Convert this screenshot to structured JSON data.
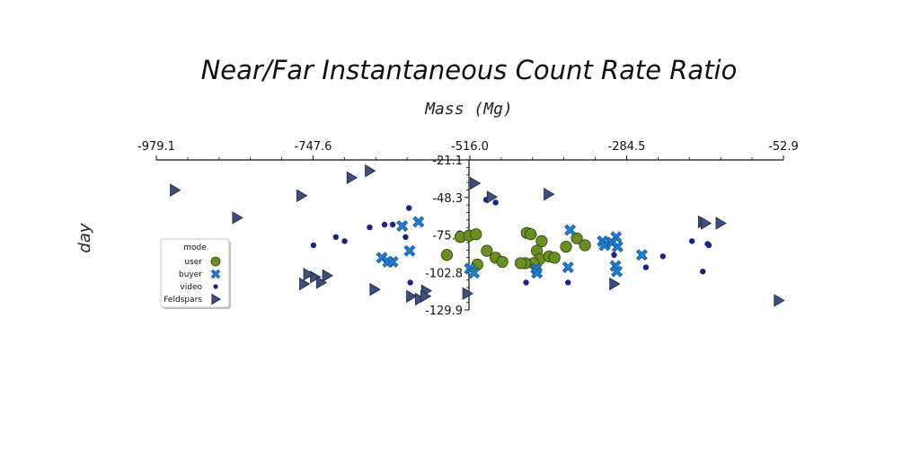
{
  "chart_data": {
    "type": "scatter",
    "title": "Near/Far Instantaneous Count Rate Ratio",
    "xlabel": "Mass (Mg)",
    "ylabel": "day",
    "xlim": [
      -979.1,
      -52.9
    ],
    "ylim": [
      -129.9,
      -21.1
    ],
    "x_ticks": [
      "-979.1",
      "-747.6",
      "-516.0",
      "-284.5",
      "-52.9"
    ],
    "y_ticks": [
      "-21.1",
      "-48.3",
      "-75.6",
      "-102.8",
      "-129.9"
    ],
    "legend": {
      "title": "mode",
      "placement": "left"
    },
    "series": [
      {
        "name": "user",
        "marker": "circle",
        "color": "#6b8e23",
        "points": [
          [
            -530,
            -77
          ],
          [
            -517,
            -76
          ],
          [
            -507,
            -75
          ],
          [
            -550,
            -90
          ],
          [
            -491,
            -87
          ],
          [
            -478,
            -92
          ],
          [
            -468,
            -95
          ],
          [
            -505,
            -97
          ],
          [
            -432,
            -74
          ],
          [
            -426,
            -75
          ],
          [
            -410,
            -80
          ],
          [
            -417,
            -87
          ],
          [
            -413,
            -93
          ],
          [
            -399,
            -91
          ],
          [
            -391,
            -92
          ],
          [
            -422,
            -96
          ],
          [
            -434,
            -96
          ],
          [
            -441,
            -96
          ],
          [
            -374,
            -84
          ],
          [
            -358,
            -78
          ],
          [
            -346,
            -83
          ]
        ]
      },
      {
        "name": "buyer",
        "marker": "x",
        "color": "#1e7fd0",
        "points": [
          [
            -616,
            -69
          ],
          [
            -592,
            -66
          ],
          [
            -605,
            -87
          ],
          [
            -646,
            -92
          ],
          [
            -637,
            -95
          ],
          [
            -630,
            -95
          ],
          [
            -516,
            -100
          ],
          [
            -510,
            -103
          ],
          [
            -418,
            -100
          ],
          [
            -417,
            -103
          ],
          [
            -368,
            -72
          ],
          [
            -371,
            -99
          ],
          [
            -320,
            -80
          ],
          [
            -317,
            -83
          ],
          [
            -301,
            -98
          ],
          [
            -299,
            -102
          ],
          [
            -300,
            -77
          ],
          [
            -306,
            -81
          ],
          [
            -298,
            -84
          ],
          [
            -262,
            -90
          ]
        ]
      },
      {
        "name": "video",
        "marker": "dot",
        "color": "#1a237e",
        "points": [
          [
            -606,
            -56
          ],
          [
            -611,
            -77
          ],
          [
            -630,
            -68
          ],
          [
            -642,
            -68
          ],
          [
            -664,
            -70
          ],
          [
            -701,
            -80
          ],
          [
            -714,
            -77
          ],
          [
            -747,
            -83
          ],
          [
            -492,
            -50
          ],
          [
            -478,
            -52
          ],
          [
            -433,
            -110
          ],
          [
            -371,
            -110
          ],
          [
            -303,
            -90
          ],
          [
            -256,
            -99
          ],
          [
            -231,
            -91
          ],
          [
            -188,
            -80
          ],
          [
            -172,
            -102
          ],
          [
            -165,
            -82
          ],
          [
            -163,
            -83
          ],
          [
            -604,
            -110
          ]
        ]
      },
      {
        "name": "Feldspars",
        "marker": "triangle-right",
        "color": "#3f4f7a",
        "points": [
          [
            -952,
            -43
          ],
          [
            -860,
            -63
          ],
          [
            -765,
            -47
          ],
          [
            -691,
            -34
          ],
          [
            -664,
            -29
          ],
          [
            -727,
            -105
          ],
          [
            -745,
            -106
          ],
          [
            -755,
            -104
          ],
          [
            -761,
            -111
          ],
          [
            -736,
            -110
          ],
          [
            -657,
            -115
          ],
          [
            -603,
            -120
          ],
          [
            -581,
            -116
          ],
          [
            -520,
            -118
          ],
          [
            -509,
            -38
          ],
          [
            -484,
            -48
          ],
          [
            -400,
            -46
          ],
          [
            -303,
            -111
          ],
          [
            -172,
            -66
          ],
          [
            -168,
            -67
          ],
          [
            -146,
            -67
          ],
          [
            -60,
            -123
          ],
          [
            -590,
            -122
          ],
          [
            -582,
            -120
          ]
        ]
      }
    ]
  }
}
